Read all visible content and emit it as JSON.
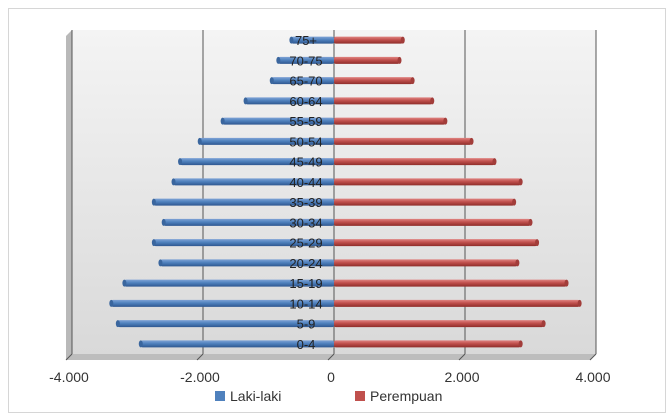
{
  "chart_data": {
    "type": "bar",
    "orientation": "horizontal",
    "categories": [
      "0-4",
      "5-9",
      "10-14",
      "15-19",
      "20-24",
      "25-29",
      "30-34",
      "35-39",
      "40-44",
      "45-49",
      "50-54",
      "55-59",
      "60-64",
      "65-70",
      "70-75",
      "75+"
    ],
    "series": [
      {
        "name": "Laki-laki",
        "color": "#4f81bd",
        "values": [
          -2950,
          -3300,
          -3400,
          -3200,
          -2650,
          -2750,
          -2600,
          -2750,
          -2450,
          -2350,
          -2050,
          -1700,
          -1350,
          -950,
          -850,
          -650
        ]
      },
      {
        "name": "Perempuan",
        "color": "#c0504d",
        "values": [
          2850,
          3200,
          3750,
          3550,
          2800,
          3100,
          3000,
          2750,
          2850,
          2450,
          2100,
          1700,
          1500,
          1200,
          1000,
          1050
        ]
      }
    ],
    "xlim": [
      -4000,
      4000
    ],
    "xticks": [
      -4000,
      -2000,
      0,
      2000,
      4000
    ],
    "xtick_labels": [
      "-4.000",
      "-2.000",
      "0",
      "2.000",
      "4.000"
    ],
    "grid": "vertical",
    "legend_position": "bottom"
  }
}
